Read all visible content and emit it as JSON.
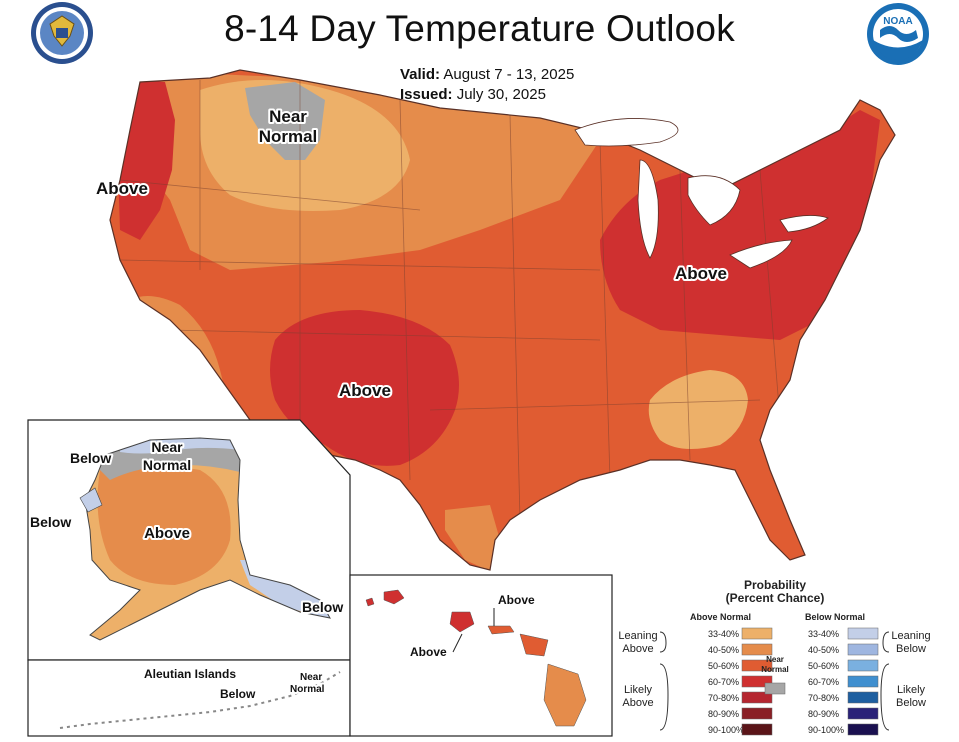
{
  "header": {
    "title": "8-14 Day Temperature Outlook",
    "valid_label": "Valid:",
    "valid_value": "August 7 - 13, 2025",
    "issued_label": "Issued:",
    "issued_value": "July 30, 2025",
    "noaa_logo_text": "NOAA"
  },
  "map": {
    "conus": {
      "above_west": "Above",
      "near_normal_1": "Near",
      "near_normal_2": "Normal",
      "above_southwest": "Above",
      "above_east": "Above"
    },
    "alaska": {
      "below_north": "Below",
      "near_1": "Near",
      "near_2": "Normal",
      "below_west": "Below",
      "above": "Above",
      "below_southeast": "Below"
    },
    "aleutians": {
      "title": "Aleutian Islands",
      "below": "Below",
      "near_1": "Near",
      "near_2": "Normal"
    },
    "hawaii": {
      "above_1": "Above",
      "above_2": "Above"
    }
  },
  "legend": {
    "title_1": "Probability",
    "title_2": "(Percent Chance)",
    "above_header": "Above Normal",
    "below_header": "Below Normal",
    "leaning_above_1": "Leaning",
    "leaning_above_2": "Above",
    "likely_above_1": "Likely",
    "likely_above_2": "Above",
    "leaning_below_1": "Leaning",
    "leaning_below_2": "Below",
    "likely_below_1": "Likely",
    "likely_below_2": "Below",
    "near_normal_1": "Near",
    "near_normal_2": "Normal",
    "above_bins": [
      {
        "label": "33-40%",
        "color": "#edb069"
      },
      {
        "label": "40-50%",
        "color": "#e58c4b"
      },
      {
        "label": "50-60%",
        "color": "#e05c32"
      },
      {
        "label": "60-70%",
        "color": "#cf3030"
      },
      {
        "label": "70-80%",
        "color": "#b52630"
      },
      {
        "label": "80-90%",
        "color": "#8a1f25"
      },
      {
        "label": "90-100%",
        "color": "#5a1418"
      }
    ],
    "below_bins": [
      {
        "label": "33-40%",
        "color": "#c3cfe8"
      },
      {
        "label": "40-50%",
        "color": "#9fb6e0"
      },
      {
        "label": "50-60%",
        "color": "#7ab0e0"
      },
      {
        "label": "60-70%",
        "color": "#3f8fcf"
      },
      {
        "label": "70-80%",
        "color": "#1e5fa0"
      },
      {
        "label": "80-90%",
        "color": "#2a2278"
      },
      {
        "label": "90-100%",
        "color": "#1a1050"
      }
    ],
    "near_normal_color": "#a6a6a6"
  },
  "colors": {
    "above_33_40": "#edb069",
    "above_40_50": "#e58c4b",
    "above_50_60": "#e05c32",
    "above_60_70": "#cf3030",
    "below_33_40": "#c3cfe8",
    "near_normal": "#a6a6a6",
    "lakes": "#ffffff",
    "borders": "#7a4030"
  }
}
